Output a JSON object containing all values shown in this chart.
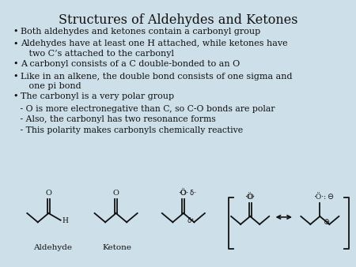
{
  "title": "Structures of Aldehydes and Ketones",
  "background_color": "#cde0ea",
  "title_fontsize": 11.5,
  "bullet_fontsize": 8.0,
  "sub_fontsize": 7.8,
  "struct_fontsize": 7.0,
  "label_fontsize": 7.5,
  "bullet_points": [
    "Both aldehydes and ketones contain a carbonyl group",
    "Aldehydes have at least one H attached, while ketones have\n   two C’s attached to the carbonyl",
    "A carbonyl consists of a C double-bonded to an O",
    "Like in an alkene, the double bond consists of one sigma and\n   one pi bond",
    "The carbonyl is a very polar group"
  ],
  "sub_bullets": [
    " - O is more electronegative than C, so C-O bonds are polar",
    " - Also, the carbonyl has two resonance forms",
    " - This polarity makes carbonyls chemically reactive"
  ],
  "label_aldehyde": "Aldehyde",
  "label_ketone": "Ketone",
  "text_color": "#111111"
}
